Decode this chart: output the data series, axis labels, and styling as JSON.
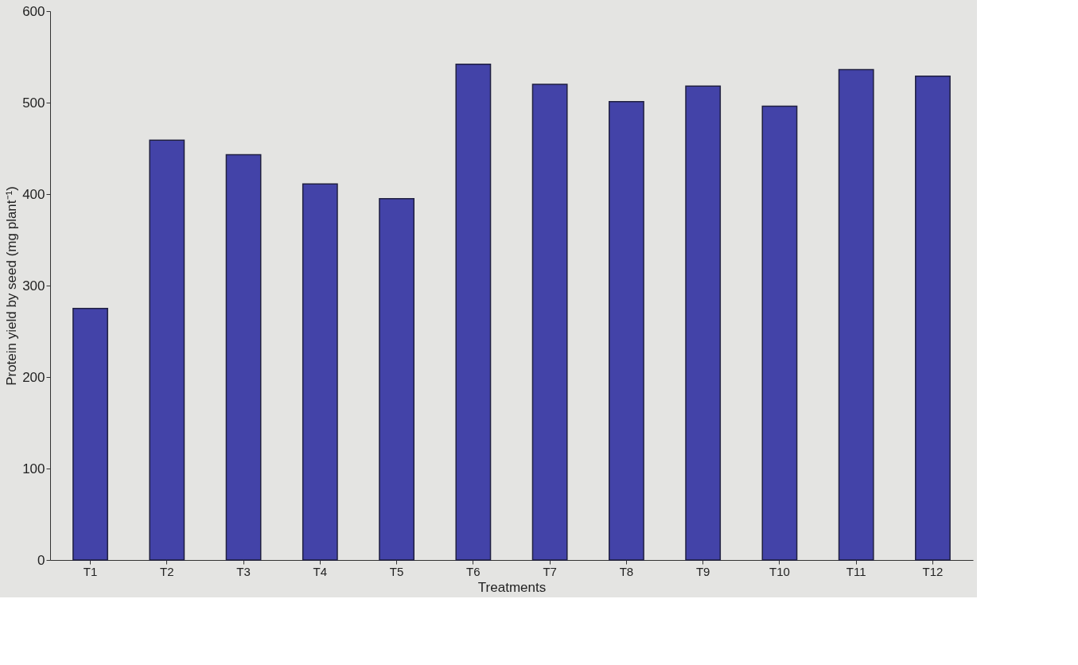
{
  "chart_data": {
    "type": "bar",
    "xlabel": "Treatments",
    "ylabel": "Protein yield by seed (mg plant⁻¹)",
    "categories": [
      "T1",
      "T2",
      "T3",
      "T4",
      "T5",
      "T6",
      "T7",
      "T8",
      "T9",
      "T10",
      "T11",
      "T12"
    ],
    "values": [
      275,
      459,
      443,
      411,
      395,
      542,
      520,
      501,
      518,
      496,
      536,
      529
    ],
    "color": "#4343a8",
    "ylim": [
      0,
      600
    ],
    "yticks": [
      0,
      100,
      200,
      300,
      400,
      500,
      600
    ],
    "grid": false
  }
}
